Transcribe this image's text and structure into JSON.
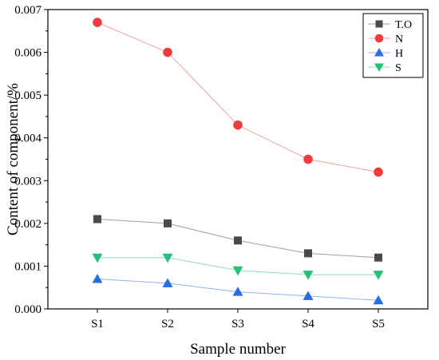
{
  "chart_data": {
    "type": "line",
    "title": "",
    "xlabel": "Sample number",
    "ylabel": "Content of component/%",
    "categories": [
      "S1",
      "S2",
      "S3",
      "S4",
      "S5"
    ],
    "ylim": [
      0,
      0.007
    ],
    "yticks": [
      "0.000",
      "0.001",
      "0.002",
      "0.003",
      "0.004",
      "0.005",
      "0.006",
      "0.007"
    ],
    "yticks_values": [
      0,
      0.001,
      0.002,
      0.003,
      0.004,
      0.005,
      0.006,
      0.007
    ],
    "grid": false,
    "legend_position": "top-right",
    "series": [
      {
        "name": "T.O",
        "marker": "square",
        "color": "#4a4a4a",
        "line_color": "#a0a0a0",
        "values": [
          0.0021,
          0.002,
          0.0016,
          0.0013,
          0.0012
        ]
      },
      {
        "name": "N",
        "marker": "circle",
        "color": "#f03c3c",
        "line_color": "#f4a0a0",
        "values": [
          0.0067,
          0.006,
          0.0043,
          0.0035,
          0.0032
        ]
      },
      {
        "name": "H",
        "marker": "triangle-up",
        "color": "#2a6fe0",
        "line_color": "#8fb4ef",
        "values": [
          0.0007,
          0.0006,
          0.0004,
          0.0003,
          0.0002
        ]
      },
      {
        "name": "S",
        "marker": "triangle-down",
        "color": "#22c27a",
        "line_color": "#90e0bb",
        "values": [
          0.0012,
          0.0012,
          0.0009,
          0.0008,
          0.0008
        ]
      }
    ]
  }
}
